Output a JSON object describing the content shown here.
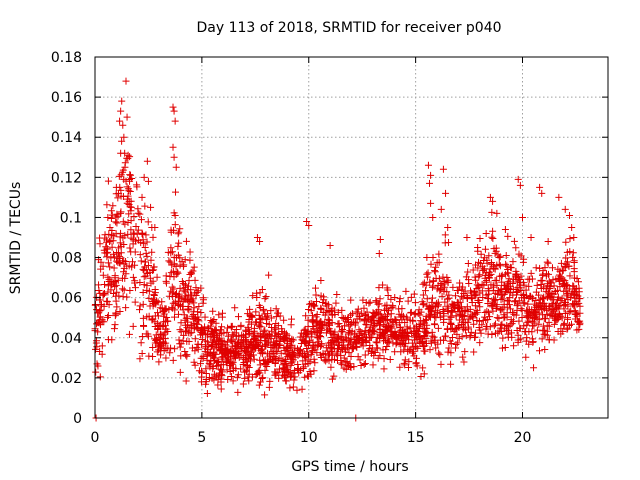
{
  "chart_data": {
    "type": "scatter",
    "title": "Day 113 of 2018, SRMTID for receiver p040",
    "xlabel": "GPS time / hours",
    "ylabel": "SRMTID / TECUs",
    "xlim": [
      0,
      24
    ],
    "ylim": [
      0,
      0.18
    ],
    "xticks": [
      "0",
      "5",
      "10",
      "15",
      "20"
    ],
    "yticks": [
      "0",
      "0.02",
      "0.04",
      "0.06",
      "0.08",
      "0.1",
      "0.12",
      "0.14",
      "0.16",
      "0.18"
    ],
    "grid": true,
    "marker": "+",
    "color": "#e00000",
    "zero_points": [
      [
        0.05,
        0
      ],
      [
        12.2,
        0
      ]
    ],
    "envelope": [
      [
        0.0,
        0.045,
        0.02
      ],
      [
        0.3,
        0.06,
        0.03
      ],
      [
        0.6,
        0.07,
        0.035
      ],
      [
        0.9,
        0.075,
        0.035
      ],
      [
        1.2,
        0.09,
        0.045
      ],
      [
        1.5,
        0.095,
        0.045
      ],
      [
        1.8,
        0.085,
        0.04
      ],
      [
        2.1,
        0.08,
        0.04
      ],
      [
        2.4,
        0.07,
        0.035
      ],
      [
        2.7,
        0.06,
        0.03
      ],
      [
        3.0,
        0.04,
        0.015
      ],
      [
        3.3,
        0.045,
        0.02
      ],
      [
        3.6,
        0.07,
        0.04
      ],
      [
        3.9,
        0.06,
        0.03
      ],
      [
        4.2,
        0.055,
        0.025
      ],
      [
        4.6,
        0.05,
        0.025
      ],
      [
        5.0,
        0.04,
        0.02
      ],
      [
        5.5,
        0.035,
        0.015
      ],
      [
        6.0,
        0.033,
        0.014
      ],
      [
        6.5,
        0.032,
        0.014
      ],
      [
        7.0,
        0.035,
        0.016
      ],
      [
        7.5,
        0.04,
        0.018
      ],
      [
        8.0,
        0.04,
        0.02
      ],
      [
        8.5,
        0.037,
        0.018
      ],
      [
        9.0,
        0.033,
        0.015
      ],
      [
        9.5,
        0.028,
        0.012
      ],
      [
        10.0,
        0.04,
        0.02
      ],
      [
        10.5,
        0.045,
        0.018
      ],
      [
        11.0,
        0.04,
        0.016
      ],
      [
        11.5,
        0.038,
        0.014
      ],
      [
        12.0,
        0.04,
        0.014
      ],
      [
        12.5,
        0.042,
        0.014
      ],
      [
        13.0,
        0.045,
        0.015
      ],
      [
        13.5,
        0.048,
        0.016
      ],
      [
        14.0,
        0.045,
        0.015
      ],
      [
        14.5,
        0.042,
        0.014
      ],
      [
        15.0,
        0.042,
        0.015
      ],
      [
        15.5,
        0.048,
        0.02
      ],
      [
        16.0,
        0.058,
        0.025
      ],
      [
        16.5,
        0.055,
        0.022
      ],
      [
        17.0,
        0.05,
        0.018
      ],
      [
        17.5,
        0.055,
        0.02
      ],
      [
        18.0,
        0.062,
        0.022
      ],
      [
        18.5,
        0.068,
        0.024
      ],
      [
        19.0,
        0.062,
        0.022
      ],
      [
        19.5,
        0.06,
        0.022
      ],
      [
        20.0,
        0.06,
        0.022
      ],
      [
        20.5,
        0.052,
        0.02
      ],
      [
        21.0,
        0.058,
        0.02
      ],
      [
        21.5,
        0.058,
        0.02
      ],
      [
        22.0,
        0.065,
        0.022
      ],
      [
        22.5,
        0.06,
        0.02
      ],
      [
        22.7,
        0.055,
        0.015
      ]
    ],
    "highlights": [
      [
        1.15,
        0.148
      ],
      [
        1.2,
        0.153
      ],
      [
        1.25,
        0.158
      ],
      [
        1.3,
        0.146
      ],
      [
        1.35,
        0.14
      ],
      [
        1.45,
        0.168
      ],
      [
        1.5,
        0.15
      ],
      [
        1.55,
        0.131
      ],
      [
        1.2,
        0.132
      ],
      [
        1.4,
        0.125
      ],
      [
        1.0,
        0.115
      ],
      [
        1.1,
        0.112
      ],
      [
        1.6,
        0.108
      ],
      [
        1.7,
        0.105
      ],
      [
        2.3,
        0.12
      ],
      [
        2.45,
        0.128
      ],
      [
        2.5,
        0.118
      ],
      [
        2.2,
        0.11
      ],
      [
        2.6,
        0.105
      ],
      [
        2.8,
        0.095
      ],
      [
        3.65,
        0.155
      ],
      [
        3.7,
        0.153
      ],
      [
        3.75,
        0.148
      ],
      [
        3.65,
        0.135
      ],
      [
        3.7,
        0.13
      ],
      [
        3.8,
        0.125
      ],
      [
        3.75,
        0.101
      ],
      [
        0.6,
        0.1
      ],
      [
        0.7,
        0.095
      ],
      [
        7.6,
        0.09
      ],
      [
        7.7,
        0.088
      ],
      [
        9.9,
        0.098
      ],
      [
        10.0,
        0.096
      ],
      [
        11.0,
        0.086
      ],
      [
        13.3,
        0.082
      ],
      [
        13.35,
        0.089
      ],
      [
        15.6,
        0.126
      ],
      [
        15.65,
        0.117
      ],
      [
        15.7,
        0.121
      ],
      [
        15.7,
        0.107
      ],
      [
        15.8,
        0.1
      ],
      [
        16.3,
        0.124
      ],
      [
        16.4,
        0.112
      ],
      [
        16.2,
        0.104
      ],
      [
        16.5,
        0.095
      ],
      [
        18.5,
        0.11
      ],
      [
        18.6,
        0.108
      ],
      [
        18.8,
        0.102
      ],
      [
        19.8,
        0.119
      ],
      [
        19.9,
        0.116
      ],
      [
        20.0,
        0.1
      ],
      [
        20.8,
        0.115
      ],
      [
        20.9,
        0.112
      ],
      [
        21.7,
        0.11
      ],
      [
        22.0,
        0.104
      ],
      [
        22.2,
        0.101
      ],
      [
        22.3,
        0.095
      ],
      [
        22.4,
        0.09
      ],
      [
        17.4,
        0.09
      ],
      [
        17.9,
        0.085
      ],
      [
        18.3,
        0.092
      ],
      [
        19.2,
        0.094
      ],
      [
        20.4,
        0.09
      ],
      [
        21.2,
        0.088
      ]
    ]
  }
}
